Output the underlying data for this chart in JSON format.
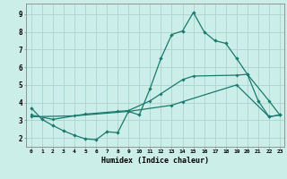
{
  "xlabel": "Humidex (Indice chaleur)",
  "bg_color": "#cceee8",
  "grid_color": "#aad4ce",
  "line_color": "#1a7a6e",
  "xlim": [
    -0.5,
    23.4
  ],
  "ylim": [
    1.5,
    9.6
  ],
  "xticks": [
    0,
    1,
    2,
    3,
    4,
    5,
    6,
    7,
    8,
    9,
    10,
    11,
    12,
    13,
    14,
    15,
    16,
    17,
    18,
    19,
    20,
    21,
    22,
    23
  ],
  "yticks": [
    2,
    3,
    4,
    5,
    6,
    7,
    8,
    9
  ],
  "curve1_x": [
    0,
    1,
    2,
    3,
    4,
    5,
    6,
    7,
    8,
    9,
    10,
    11,
    12,
    13,
    14,
    15,
    16,
    17,
    18,
    19,
    20,
    21,
    22,
    23
  ],
  "curve1_y": [
    3.7,
    3.05,
    2.7,
    2.4,
    2.15,
    1.95,
    1.9,
    2.35,
    2.3,
    3.5,
    3.3,
    4.8,
    6.5,
    7.85,
    8.05,
    9.1,
    8.0,
    7.5,
    7.35,
    6.5,
    5.6,
    4.1,
    3.2,
    3.3
  ],
  "curve2_x": [
    0,
    2,
    5,
    8,
    9,
    11,
    12,
    14,
    15,
    19,
    20,
    22,
    23
  ],
  "curve2_y": [
    3.3,
    3.05,
    3.35,
    3.5,
    3.55,
    4.1,
    4.5,
    5.3,
    5.5,
    5.55,
    5.6,
    4.1,
    3.3
  ],
  "curve3_x": [
    0,
    4,
    9,
    13,
    14,
    19,
    22,
    23
  ],
  "curve3_y": [
    3.2,
    3.25,
    3.5,
    3.85,
    4.05,
    5.0,
    3.2,
    3.3
  ]
}
